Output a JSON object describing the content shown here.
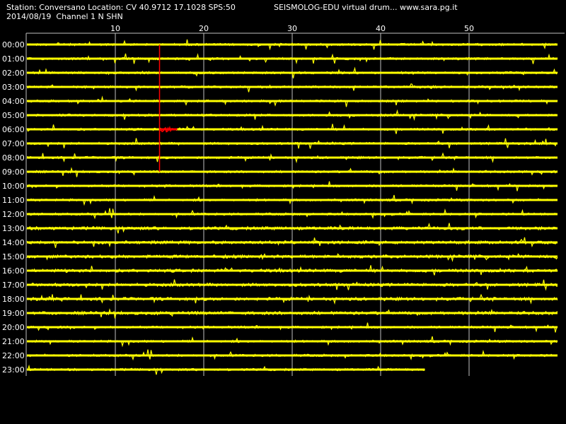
{
  "header": {
    "station_line": "Station: Conversano Location: CV 40.9712 17.1028 SPS:50",
    "source_line": "SEISMOLOG-EDU virtual drum... www.sara.pg.it",
    "date_line": "2014/08/19  Channel 1 N SHN"
  },
  "drum": {
    "minute_ticks": [
      "10",
      "20",
      "30",
      "40",
      "50"
    ],
    "minute_tick_values": [
      10,
      20,
      30,
      40,
      50
    ],
    "minutes_per_row": 60,
    "hour_rows": [
      "00:00",
      "01:00",
      "02:00",
      "03:00",
      "04:00",
      "05:00",
      "06:00",
      "07:00",
      "08:00",
      "09:00",
      "10:00",
      "11:00",
      "12:00",
      "13:00",
      "14:00",
      "15:00",
      "16:00",
      "17:00",
      "18:00",
      "19:00",
      "20:00",
      "21:00",
      "22:00",
      "23:00"
    ],
    "last_row_end_minute": 45,
    "trace_color": "#ffff00",
    "event_color": "#ff0000",
    "grid_color": "#c0c0c0",
    "background_color": "#000000",
    "event": {
      "row": "06:00",
      "minute": 15,
      "marker_from_row": "00:00",
      "marker_to_row": "09:00",
      "duration_minutes": 2
    }
  }
}
